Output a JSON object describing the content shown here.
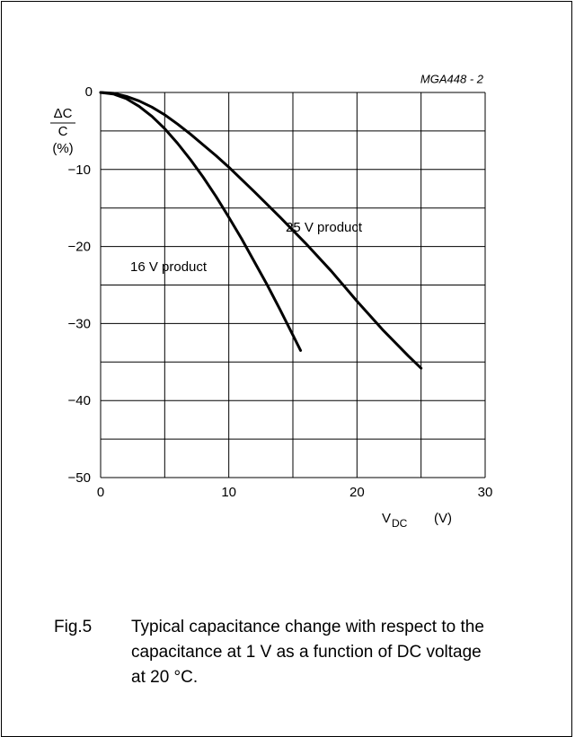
{
  "chart_data": {
    "type": "line",
    "annotation": "MGA448 - 2",
    "ylabel": {
      "numerator": "ΔC",
      "denominator": "C",
      "unit": "(%)"
    },
    "xlabel": {
      "base": "V",
      "sub": "DC",
      "unit": "(V)"
    },
    "xlim": [
      0,
      30
    ],
    "ylim": [
      -50,
      0
    ],
    "xticks": [
      0,
      10,
      20,
      30
    ],
    "yticks": [
      0,
      {
        "value": -10,
        "label": "−10"
      },
      {
        "value": -20,
        "label": "−20"
      },
      {
        "value": -30,
        "label": "−30"
      },
      {
        "value": -40,
        "label": "−40"
      },
      {
        "value": -50,
        "label": "−50"
      }
    ],
    "x_gridlines": [
      0,
      5,
      10,
      15,
      20,
      25,
      30
    ],
    "y_gridlines": [
      0,
      -5,
      -10,
      -15,
      -20,
      -25,
      -30,
      -35,
      -40,
      -45,
      -50
    ],
    "series": [
      {
        "name": "25 V product",
        "color": "#000000",
        "x": [
          0,
          1,
          2,
          3,
          4,
          5,
          6,
          7,
          8,
          9,
          10,
          12,
          14,
          16,
          18,
          20,
          22,
          24,
          25
        ],
        "values": [
          0,
          -0.1,
          -0.5,
          -1.1,
          -1.9,
          -2.9,
          -4.1,
          -5.4,
          -6.8,
          -8.2,
          -9.7,
          -12.9,
          -16.2,
          -19.6,
          -23.2,
          -27.1,
          -30.8,
          -34.2,
          -35.8
        ]
      },
      {
        "name": "16 V product",
        "color": "#000000",
        "x": [
          0,
          1,
          2,
          3,
          4,
          5,
          6,
          7,
          8,
          9,
          10,
          11,
          12,
          13,
          14,
          15,
          15.6
        ],
        "values": [
          0,
          -0.2,
          -0.8,
          -1.8,
          -3.1,
          -4.7,
          -6.6,
          -8.7,
          -11,
          -13.5,
          -16.2,
          -19,
          -22,
          -25,
          -28.2,
          -31.5,
          -33.5
        ]
      }
    ]
  },
  "caption": {
    "label": "Fig.5",
    "text": "Typical capacitance change with respect to the capacitance at 1 V as a function of DC voltage at 20 °C."
  }
}
